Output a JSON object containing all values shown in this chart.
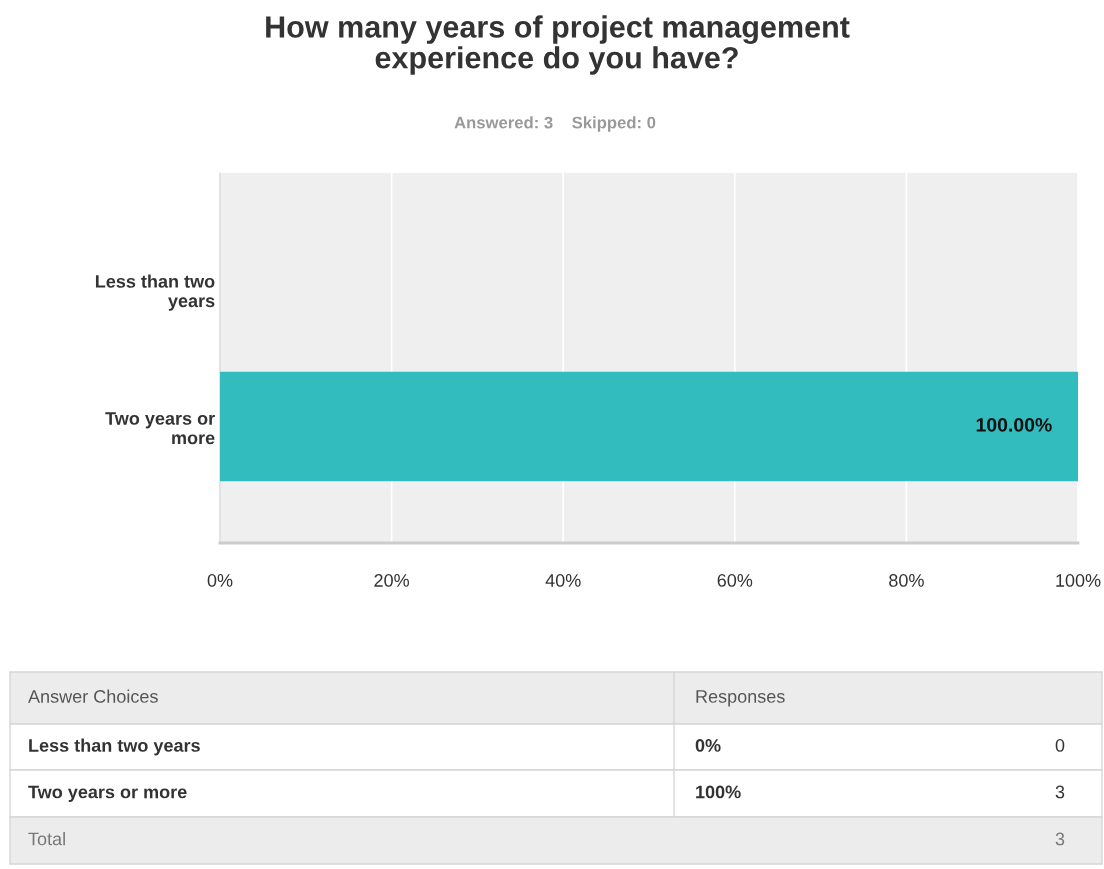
{
  "chart_data": {
    "type": "bar",
    "orientation": "horizontal",
    "title": "How many years of project management experience do you have?",
    "subtitle": "Answered: 3    Skipped: 0",
    "categories": [
      "Less than two years",
      "Two years or more"
    ],
    "values": [
      0,
      100
    ],
    "color": "#33bcbd",
    "value_labels": [
      null,
      "100.00%"
    ],
    "xlim": [
      0,
      100
    ],
    "xticks": [
      {
        "value": 0,
        "label": "0%"
      },
      {
        "value": 20,
        "label": "20%"
      },
      {
        "value": 40,
        "label": "40%"
      },
      {
        "value": 60,
        "label": "60%"
      },
      {
        "value": 80,
        "label": "80%"
      },
      {
        "value": 100,
        "label": "100%"
      }
    ],
    "grid": "x",
    "legend": false,
    "annotations": [
      "Answer Choices",
      "Responses",
      "Less than two years",
      "0%",
      "0",
      "Two years or more",
      "100%",
      "3",
      "Total",
      "3"
    ]
  }
}
